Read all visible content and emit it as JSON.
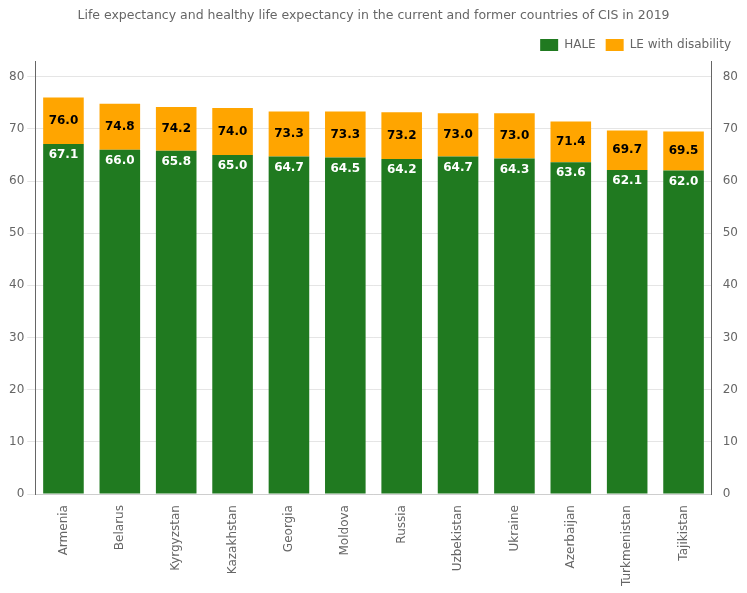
{
  "chart_data": {
    "type": "bar",
    "title": "Life expectancy and healthy life expectancy in the current and former countries of CIS in 2019",
    "categories": [
      "Armenia",
      "Belarus",
      "Kyrgyzstan",
      "Kazakhstan",
      "Georgia",
      "Moldova",
      "Russia",
      "Uzbekistan",
      "Ukraine",
      "Azerbaijan",
      "Turkmenistan",
      "Tajikistan"
    ],
    "series": [
      {
        "name": "HALE",
        "color": "#207a20",
        "values": [
          67.1,
          66.0,
          65.8,
          65.0,
          64.7,
          64.5,
          64.2,
          64.7,
          64.3,
          63.6,
          62.1,
          62.0
        ],
        "value_labels": [
          "67.1",
          "66.0",
          "65.8",
          "65.0",
          "64.7",
          "64.5",
          "64.2",
          "64.7",
          "64.3",
          "63.6",
          "62.1",
          "62.0"
        ]
      },
      {
        "name": "LE with disability",
        "color": "#ffa500",
        "values": [
          8.9,
          8.8,
          8.4,
          9.0,
          8.6,
          8.8,
          9.0,
          8.3,
          8.7,
          7.8,
          7.6,
          7.5
        ],
        "totals": [
          76.0,
          74.8,
          74.2,
          74.0,
          73.3,
          73.3,
          73.2,
          73.0,
          73.0,
          71.4,
          69.7,
          69.5
        ],
        "total_labels": [
          "76.0",
          "74.8",
          "74.2",
          "74.0",
          "73.3",
          "73.3",
          "73.2",
          "73.0",
          "73.0",
          "71.4",
          "69.7",
          "69.5"
        ]
      }
    ],
    "stacked": true,
    "data_labels": true,
    "ylim": [
      0,
      83
    ],
    "yticks": [
      0,
      10,
      20,
      30,
      40,
      50,
      60,
      70,
      80
    ],
    "y2lim": [
      0,
      83
    ],
    "y2ticks": [
      0,
      10,
      20,
      30,
      40,
      50,
      60,
      70,
      80
    ],
    "grid": true,
    "legend": "upper right"
  }
}
